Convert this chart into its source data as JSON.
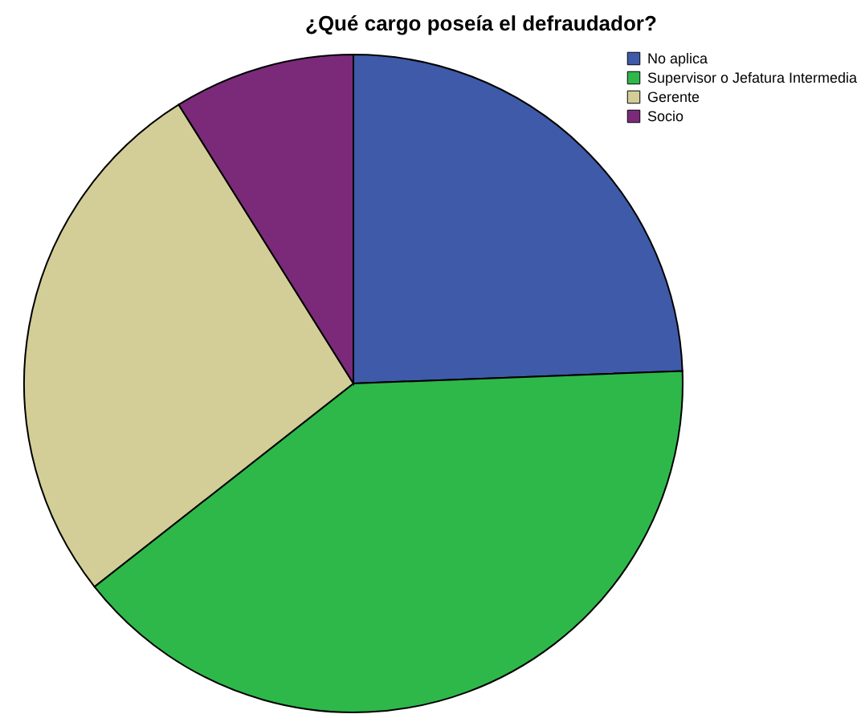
{
  "chart_data": {
    "type": "pie",
    "title": "¿Qué cargo poseía el defraudador?",
    "categories": [
      "No aplica",
      "Supervisor o Jefatura Intermedia",
      "Gerente",
      "Socio"
    ],
    "values": [
      24.4,
      40.0,
      26.7,
      8.9
    ],
    "colors": [
      "#3f5aa8",
      "#2eb84a",
      "#d3ce97",
      "#7b2a7a"
    ],
    "legend": "top right"
  }
}
